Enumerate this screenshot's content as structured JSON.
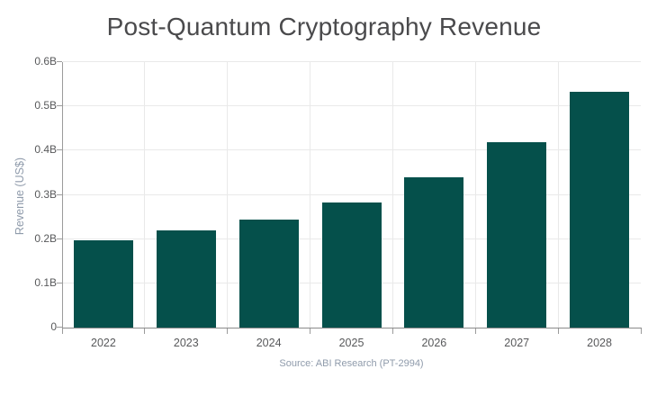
{
  "chart_data": {
    "type": "bar",
    "title": "Post-Quantum Cryptography Revenue",
    "xlabel": "",
    "ylabel": "Revenue (US$)",
    "categories": [
      "2022",
      "2023",
      "2024",
      "2025",
      "2026",
      "2027",
      "2028"
    ],
    "values": [
      0.198,
      0.22,
      0.245,
      0.282,
      0.34,
      0.418,
      0.533
    ],
    "units": "billions US$",
    "ylim": [
      0,
      0.6
    ],
    "ytick_step": 0.1,
    "ytick_labels": [
      "0",
      "0.1B",
      "0.2B",
      "0.3B",
      "0.4B",
      "0.5B",
      "0.6B"
    ],
    "grid": true,
    "legend": false,
    "source_note": "Source: ABI Research (PT-2994)",
    "colors": {
      "bar": "#05504b",
      "gridline": "#e9e9e9",
      "axis": "#9b9b9b",
      "tick_label": "#58595b",
      "muted_text": "#8f9bab",
      "title_text": "#4a4a4c",
      "background": "#ffffff"
    }
  }
}
